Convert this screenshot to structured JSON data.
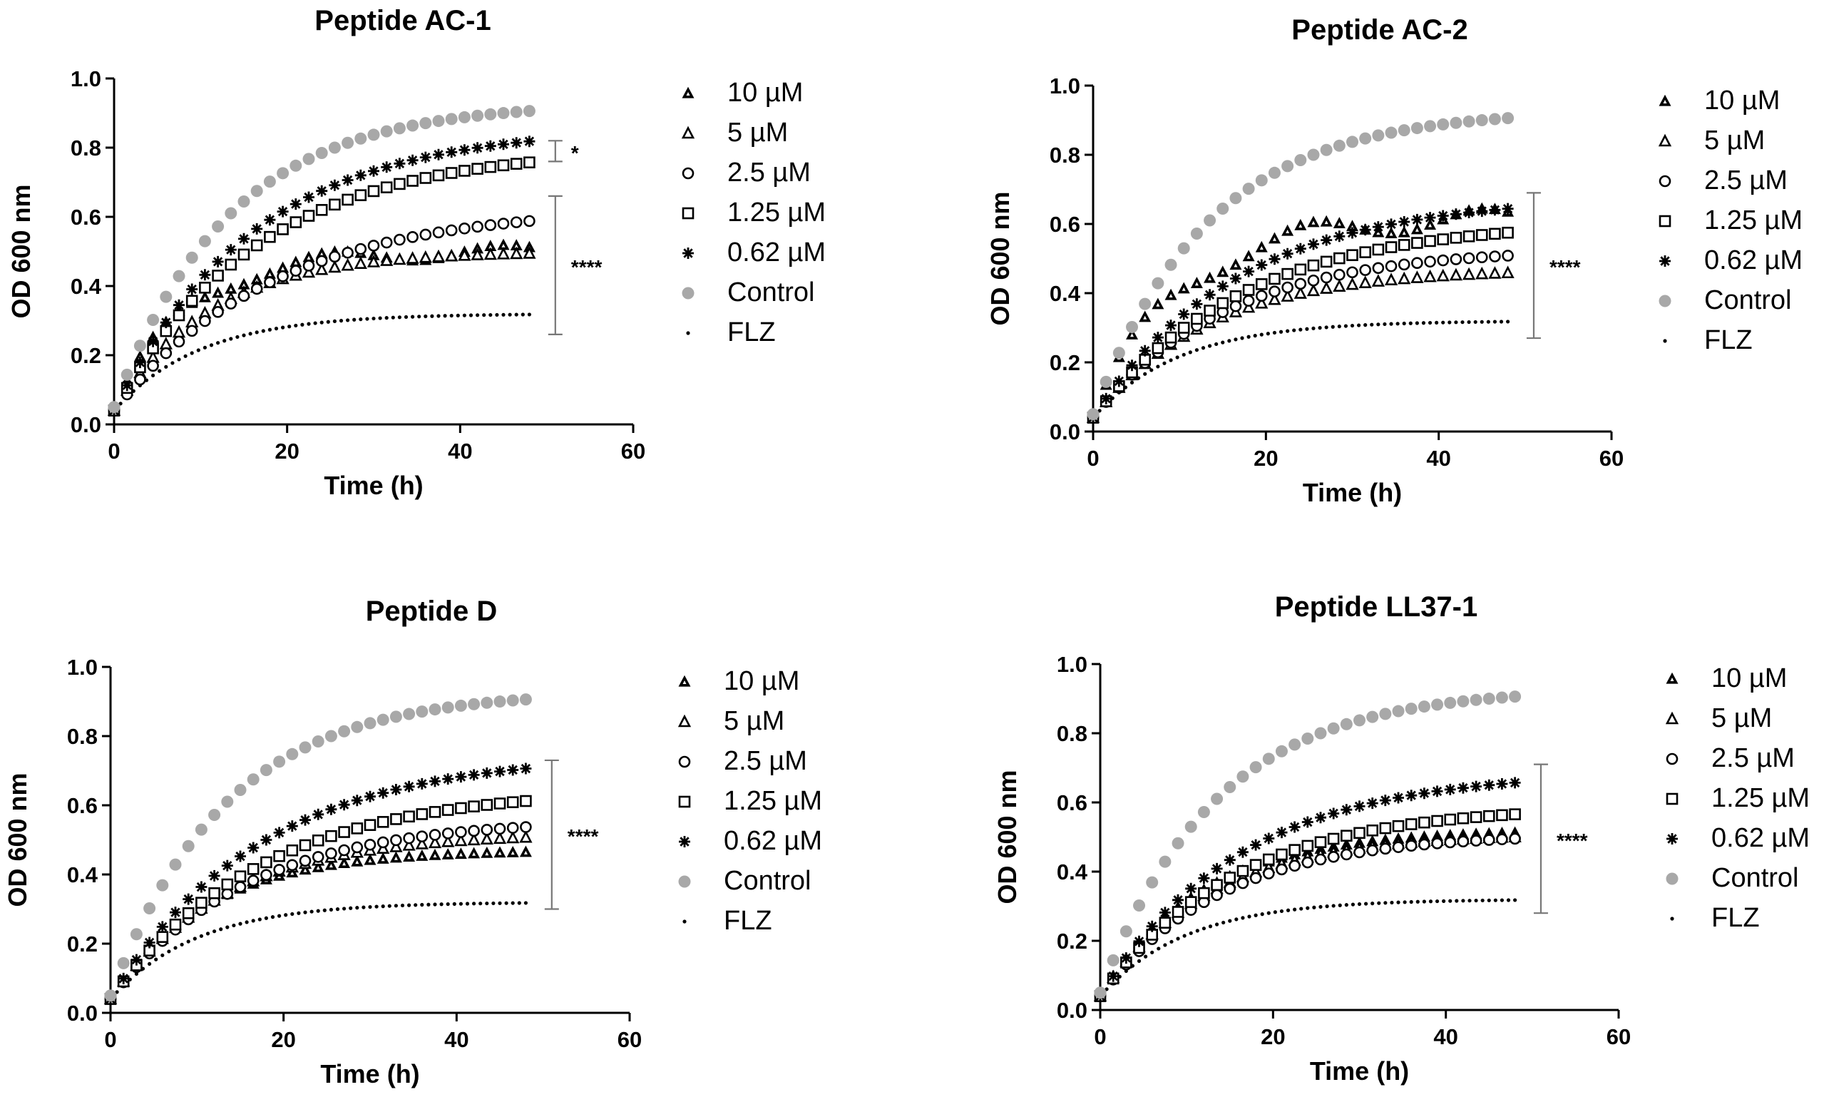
{
  "chart_data": [
    {
      "type": "scatter",
      "title": "Peptide AC-1",
      "xlabel": "Time (h)",
      "ylabel": "OD 600 nm",
      "xlim": [
        0,
        60
      ],
      "ylim": [
        0,
        1.0
      ],
      "xticks": [
        "0",
        "20",
        "40",
        "60"
      ],
      "yticks": [
        "0.0",
        "0.2",
        "0.4",
        "0.6",
        "0.8",
        "1.0"
      ],
      "legend": [
        "10 µM",
        "5 µM",
        "2.5 µM",
        "1.25 µM",
        "0.62 µM",
        "Control",
        "FLZ"
      ],
      "series": [
        {
          "name": "10 µM",
          "marker": "triangle-filled",
          "start": 0.04,
          "plateau": 0.5,
          "rate": 0.12,
          "end": 0.55,
          "bump": 0.02
        },
        {
          "name": "5 µM",
          "marker": "triangle-open",
          "start": 0.04,
          "plateau": 0.5,
          "rate": 0.09,
          "end": 0.5
        },
        {
          "name": "2.5 µM",
          "marker": "circle-open",
          "start": 0.04,
          "plateau": 0.63,
          "rate": 0.055,
          "end": 0.6
        },
        {
          "name": "1.25 µM",
          "marker": "square-open",
          "start": 0.04,
          "plateau": 0.8,
          "rate": 0.06,
          "end": 0.76
        },
        {
          "name": "0.62 µM",
          "marker": "star",
          "start": 0.04,
          "plateau": 0.86,
          "rate": 0.062,
          "end": 0.82
        },
        {
          "name": "Control",
          "marker": "dot-gray",
          "start": 0.05,
          "plateau": 0.93,
          "rate": 0.075,
          "end": 0.91
        },
        {
          "name": "FLZ",
          "marker": "dot-small",
          "start": 0.04,
          "plateau": 0.32,
          "rate": 0.1,
          "end": 0.32
        }
      ],
      "significance": [
        {
          "label": "*",
          "from": 0.76,
          "to": 0.82
        },
        {
          "label": "****",
          "from": 0.26,
          "to": 0.66
        }
      ]
    },
    {
      "type": "scatter",
      "title": "Peptide AC-2",
      "xlabel": "Time (h)",
      "ylabel": "OD 600 nm",
      "xlim": [
        0,
        60
      ],
      "ylim": [
        0,
        1.0
      ],
      "xticks": [
        "0",
        "20",
        "40",
        "60"
      ],
      "yticks": [
        "0.0",
        "0.2",
        "0.4",
        "0.6",
        "0.8",
        "1.0"
      ],
      "legend": [
        "10 µM",
        "5 µM",
        "2.5 µM",
        "1.25 µM",
        "0.62 µM",
        "Control",
        "FLZ"
      ],
      "series": [
        {
          "name": "10 µM",
          "marker": "triangle-filled",
          "start": 0.04,
          "plateau": 0.62,
          "rate": 0.1,
          "end": 0.62,
          "bump": 0.03
        },
        {
          "name": "5 µM",
          "marker": "triangle-open",
          "start": 0.04,
          "plateau": 0.47,
          "rate": 0.075,
          "end": 0.46
        },
        {
          "name": "2.5 µM",
          "marker": "circle-open",
          "start": 0.04,
          "plateau": 0.53,
          "rate": 0.065,
          "end": 0.51
        },
        {
          "name": "1.25 µM",
          "marker": "square-open",
          "start": 0.04,
          "plateau": 0.61,
          "rate": 0.058,
          "end": 0.58
        },
        {
          "name": "0.62 µM",
          "marker": "star",
          "start": 0.04,
          "plateau": 0.68,
          "rate": 0.06,
          "end": 0.65
        },
        {
          "name": "Control",
          "marker": "dot-gray",
          "start": 0.05,
          "plateau": 0.93,
          "rate": 0.075,
          "end": 0.91
        },
        {
          "name": "FLZ",
          "marker": "dot-small",
          "start": 0.04,
          "plateau": 0.32,
          "rate": 0.1,
          "end": 0.32
        }
      ],
      "significance": [
        {
          "label": "****",
          "from": 0.27,
          "to": 0.69
        }
      ]
    },
    {
      "type": "scatter",
      "title": "Peptide D",
      "xlabel": "Time (h)",
      "ylabel": "OD 600 nm",
      "xlim": [
        0,
        60
      ],
      "ylim": [
        0,
        1.0
      ],
      "xticks": [
        "0",
        "20",
        "40",
        "60"
      ],
      "yticks": [
        "0.0",
        "0.2",
        "0.4",
        "0.6",
        "0.8",
        "1.0"
      ],
      "legend": [
        "10 µM",
        "5 µM",
        "2.5 µM",
        "1.25 µM",
        "0.62 µM",
        "Control",
        "FLZ"
      ],
      "series": [
        {
          "name": "10 µM",
          "marker": "triangle-filled",
          "start": 0.04,
          "plateau": 0.47,
          "rate": 0.09,
          "end": 0.46
        },
        {
          "name": "5 µM",
          "marker": "triangle-open",
          "start": 0.04,
          "plateau": 0.52,
          "rate": 0.075,
          "end": 0.5
        },
        {
          "name": "2.5 µM",
          "marker": "circle-open",
          "start": 0.04,
          "plateau": 0.56,
          "rate": 0.065,
          "end": 0.54
        },
        {
          "name": "1.25 µM",
          "marker": "square-open",
          "start": 0.04,
          "plateau": 0.65,
          "rate": 0.058,
          "end": 0.61
        },
        {
          "name": "0.62 µM",
          "marker": "star",
          "start": 0.04,
          "plateau": 0.75,
          "rate": 0.058,
          "end": 0.71
        },
        {
          "name": "Control",
          "marker": "dot-gray",
          "start": 0.05,
          "plateau": 0.93,
          "rate": 0.075,
          "end": 0.91
        },
        {
          "name": "FLZ",
          "marker": "dot-small",
          "start": 0.04,
          "plateau": 0.32,
          "rate": 0.1,
          "end": 0.32
        }
      ],
      "significance": [
        {
          "label": "****",
          "from": 0.3,
          "to": 0.73
        }
      ]
    },
    {
      "type": "scatter",
      "title": "Peptide LL37-1",
      "xlabel": "Time (h)",
      "ylabel": "OD 600 nm",
      "xlim": [
        0,
        60
      ],
      "ylim": [
        0,
        1.0
      ],
      "xticks": [
        "0",
        "20",
        "40",
        "60"
      ],
      "yticks": [
        "0.0",
        "0.2",
        "0.4",
        "0.6",
        "0.8",
        "1.0"
      ],
      "legend": [
        "10 µM",
        "5 µM",
        "2.5 µM",
        "1.25 µM",
        "0.62 µM",
        "Control",
        "FLZ"
      ],
      "series": [
        {
          "name": "10 µM",
          "marker": "triangle-filled",
          "start": 0.04,
          "plateau": 0.52,
          "rate": 0.085,
          "end": 0.51
        },
        {
          "name": "5 µM",
          "marker": "triangle-open",
          "start": 0.04,
          "plateau": 0.51,
          "rate": 0.08,
          "end": 0.5
        },
        {
          "name": "2.5 µM",
          "marker": "circle-open",
          "start": 0.04,
          "plateau": 0.51,
          "rate": 0.072,
          "end": 0.5
        },
        {
          "name": "1.25 µM",
          "marker": "square-open",
          "start": 0.04,
          "plateau": 0.59,
          "rate": 0.065,
          "end": 0.57
        },
        {
          "name": "0.62 µM",
          "marker": "star",
          "start": 0.04,
          "plateau": 0.69,
          "rate": 0.062,
          "end": 0.66
        },
        {
          "name": "Control",
          "marker": "dot-gray",
          "start": 0.05,
          "plateau": 0.93,
          "rate": 0.075,
          "end": 0.91
        },
        {
          "name": "FLZ",
          "marker": "dot-small",
          "start": 0.04,
          "plateau": 0.32,
          "rate": 0.1,
          "end": 0.32
        }
      ],
      "significance": [
        {
          "label": "****",
          "from": 0.28,
          "to": 0.71
        }
      ]
    }
  ]
}
